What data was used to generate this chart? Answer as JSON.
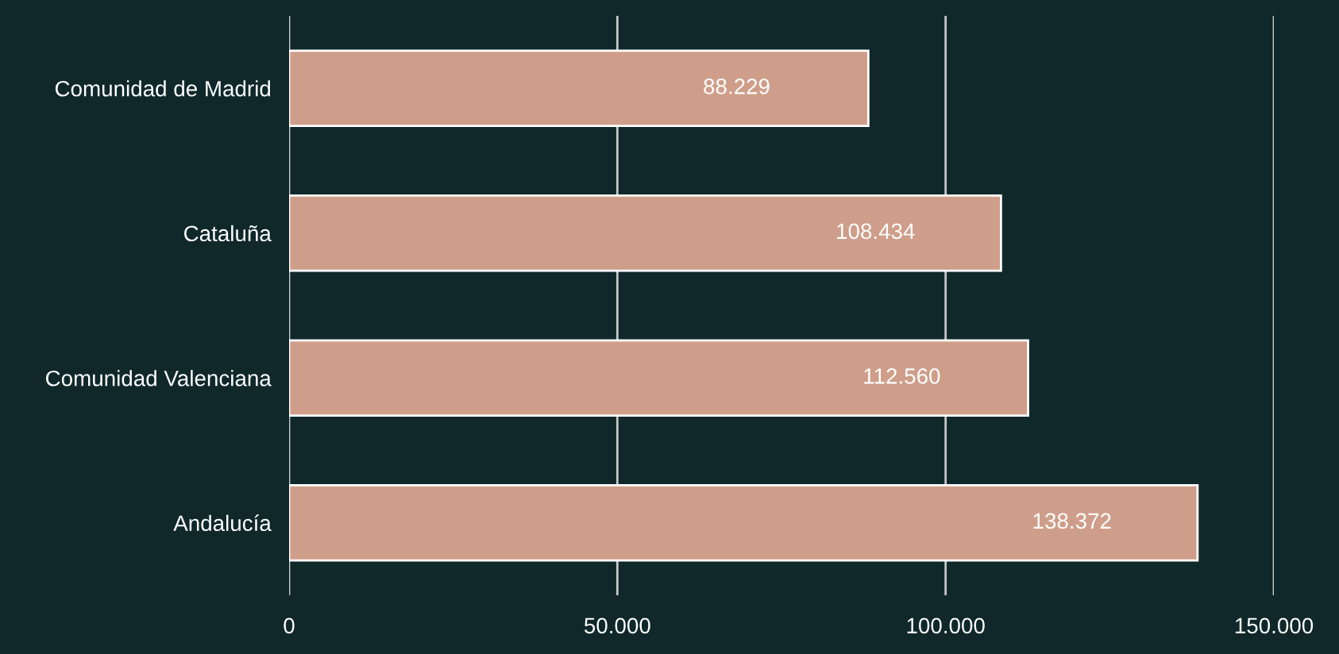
{
  "chart_data": {
    "type": "bar",
    "orientation": "horizontal",
    "categories": [
      "Comunidad de Madrid",
      "Cataluña",
      "Comunidad Valenciana",
      "Andalucía"
    ],
    "values": [
      88229,
      108434,
      112560,
      138372
    ],
    "value_labels": [
      "88.229",
      "108.434",
      "112.560",
      "138.372"
    ],
    "color": "#cf9e8a",
    "xlim": [
      0,
      150000
    ],
    "xticks": [
      0,
      {
        "value": 50000,
        "label": "50.000"
      },
      {
        "value": 100000,
        "label": "100.000"
      },
      {
        "value": 150000,
        "label": "150.000"
      }
    ],
    "grid": "x",
    "legend": false
  }
}
